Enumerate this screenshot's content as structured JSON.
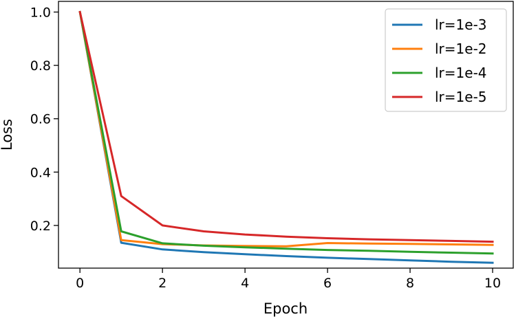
{
  "chart_data": {
    "type": "line",
    "title": "",
    "xlabel": "Epoch",
    "ylabel": "Loss",
    "xlim": [
      -0.52,
      10.5
    ],
    "ylim": [
      0.04,
      1.04
    ],
    "xticks": [
      "0",
      "2",
      "4",
      "6",
      "8",
      "10"
    ],
    "yticks": [
      "0.2",
      "0.4",
      "0.6",
      "0.8",
      "1.0"
    ],
    "grid": false,
    "legend_position": "top-right",
    "x": [
      0,
      1,
      2,
      3,
      4,
      5,
      6,
      7,
      8,
      9,
      10
    ],
    "series": [
      {
        "name": "lr=1e-3",
        "color": "#1f77b4",
        "values": [
          1.0,
          0.135,
          0.11,
          0.1,
          0.092,
          0.085,
          0.079,
          0.074,
          0.069,
          0.064,
          0.06
        ]
      },
      {
        "name": "lr=1e-2",
        "color": "#ff7f0e",
        "values": [
          1.0,
          0.145,
          0.13,
          0.125,
          0.123,
          0.122,
          0.134,
          0.132,
          0.131,
          0.129,
          0.127
        ]
      },
      {
        "name": "lr=1e-4",
        "color": "#2ca02c",
        "values": [
          1.0,
          0.178,
          0.133,
          0.124,
          0.118,
          0.113,
          0.108,
          0.105,
          0.101,
          0.098,
          0.095
        ]
      },
      {
        "name": "lr=1e-5",
        "color": "#d62728",
        "values": [
          1.0,
          0.31,
          0.2,
          0.178,
          0.166,
          0.158,
          0.152,
          0.148,
          0.145,
          0.142,
          0.139
        ]
      }
    ]
  }
}
